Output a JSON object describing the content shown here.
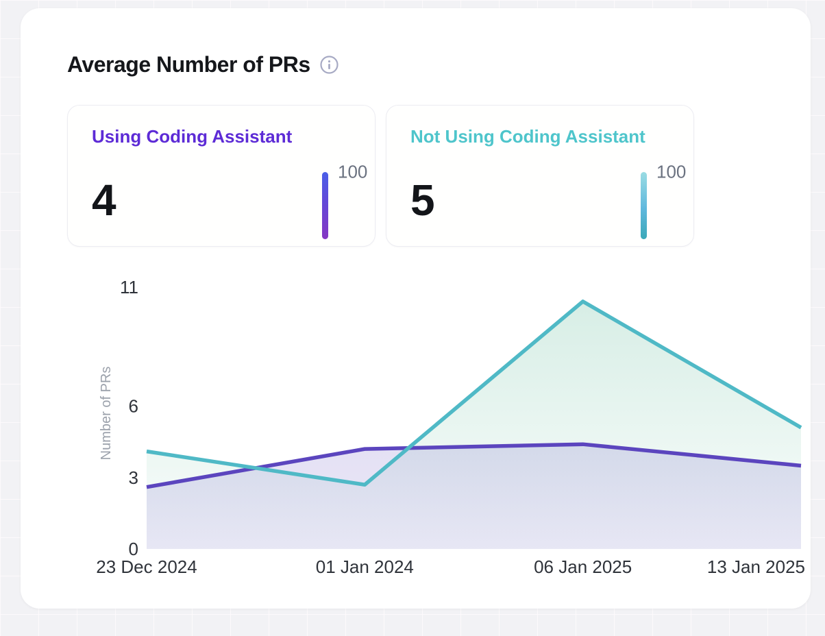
{
  "header": {
    "title": "Average Number of PRs"
  },
  "stat_cards": [
    {
      "label": "Using Coding Assistant",
      "value": "4",
      "scale_max": "100",
      "accent_color": "#5d2bd6",
      "bar_gradient": [
        "#4a5fe8",
        "#8637c3"
      ]
    },
    {
      "label": "Not Using Coding Assistant",
      "value": "5",
      "scale_max": "100",
      "accent_color": "#4ec5cb",
      "bar_gradient": [
        "#9adce3",
        "#3aa8b8"
      ]
    }
  ],
  "chart_data": {
    "type": "area",
    "title": "Average Number of PRs",
    "ylabel": "Number of PRs",
    "xlabel": "",
    "x": [
      "23 Dec 2024",
      "01 Jan 2024",
      "06 Jan 2025",
      "13 Jan 2025"
    ],
    "series": [
      {
        "name": "Using Coding Assistant",
        "color": "#5b45be",
        "fill_color": "#5b45be",
        "values": [
          2.6,
          4.2,
          4.4,
          3.5
        ]
      },
      {
        "name": "Not Using Coding Assistant",
        "color": "#4fb9c6",
        "fill_color": "#5eba98",
        "values": [
          4.1,
          2.7,
          10.4,
          5.1
        ]
      }
    ],
    "ylim": [
      0,
      11
    ],
    "yticks": [
      11,
      6,
      3,
      0
    ],
    "grid": false,
    "legend_position": "stat-cards-above"
  }
}
